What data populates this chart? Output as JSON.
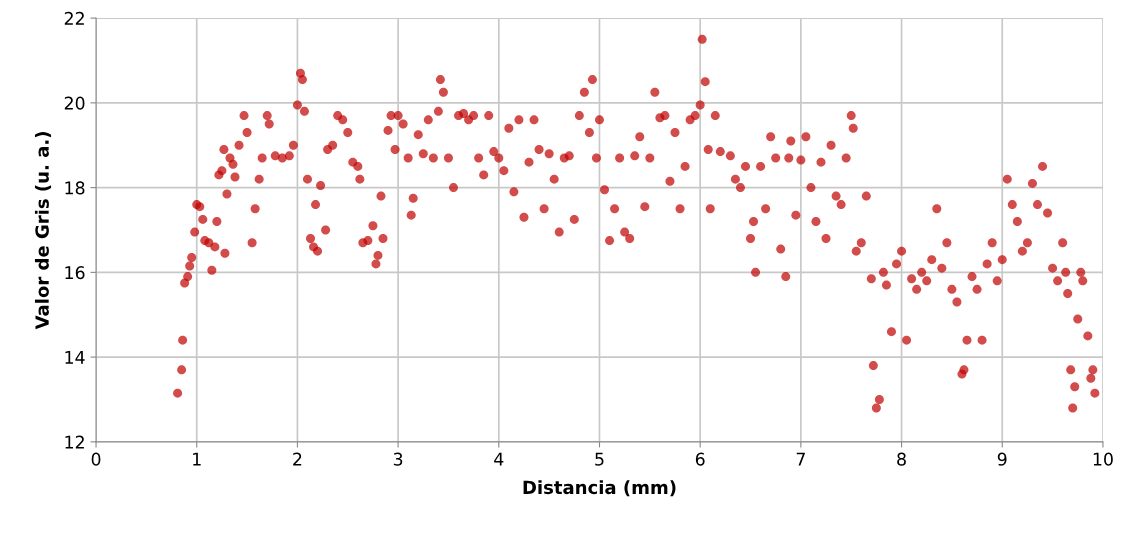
{
  "chart_data": {
    "type": "scatter",
    "xlabel": "Distancia (mm)",
    "ylabel": "Valor de Gris (u. a.)",
    "xlim": [
      0,
      10
    ],
    "ylim": [
      12,
      22
    ],
    "xticks": [
      0,
      1,
      2,
      3,
      4,
      5,
      6,
      7,
      8,
      9,
      10
    ],
    "yticks": [
      12,
      14,
      16,
      18,
      20,
      22
    ],
    "grid": true,
    "marker": "circle",
    "series": [
      {
        "color": "#c00000",
        "x": [
          0.81,
          0.85,
          0.86,
          0.88,
          0.91,
          0.93,
          0.95,
          0.98,
          1.0,
          1.03,
          1.06,
          1.08,
          1.12,
          1.15,
          1.18,
          1.2,
          1.22,
          1.25,
          1.27,
          1.28,
          1.3,
          1.33,
          1.36,
          1.38,
          1.42,
          1.47,
          1.5,
          1.55,
          1.58,
          1.62,
          1.65,
          1.7,
          1.72,
          1.78,
          1.85,
          1.92,
          1.96,
          2.0,
          2.03,
          2.05,
          2.07,
          2.1,
          2.13,
          2.16,
          2.18,
          2.2,
          2.23,
          2.28,
          2.3,
          2.35,
          2.4,
          2.45,
          2.5,
          2.55,
          2.6,
          2.62,
          2.65,
          2.7,
          2.75,
          2.78,
          2.8,
          2.83,
          2.85,
          2.9,
          2.93,
          2.97,
          3.0,
          3.05,
          3.1,
          3.13,
          3.15,
          3.2,
          3.25,
          3.3,
          3.35,
          3.4,
          3.42,
          3.45,
          3.5,
          3.55,
          3.6,
          3.65,
          3.7,
          3.75,
          3.8,
          3.85,
          3.9,
          3.95,
          4.0,
          4.05,
          4.1,
          4.15,
          4.2,
          4.25,
          4.3,
          4.35,
          4.4,
          4.45,
          4.5,
          4.55,
          4.6,
          4.65,
          4.7,
          4.75,
          4.8,
          4.85,
          4.9,
          4.93,
          4.97,
          5.0,
          5.05,
          5.1,
          5.15,
          5.2,
          5.25,
          5.3,
          5.35,
          5.4,
          5.45,
          5.5,
          5.55,
          5.6,
          5.65,
          5.7,
          5.75,
          5.8,
          5.85,
          5.9,
          5.95,
          6.0,
          6.02,
          6.05,
          6.08,
          6.1,
          6.15,
          6.2,
          6.3,
          6.35,
          6.4,
          6.45,
          6.5,
          6.53,
          6.55,
          6.6,
          6.65,
          6.7,
          6.75,
          6.8,
          6.85,
          6.88,
          6.9,
          6.95,
          7.0,
          7.05,
          7.1,
          7.15,
          7.2,
          7.25,
          7.3,
          7.35,
          7.4,
          7.45,
          7.5,
          7.52,
          7.55,
          7.6,
          7.65,
          7.7,
          7.72,
          7.75,
          7.78,
          7.82,
          7.85,
          7.9,
          7.95,
          8.0,
          8.05,
          8.1,
          8.15,
          8.2,
          8.25,
          8.3,
          8.35,
          8.4,
          8.45,
          8.5,
          8.55,
          8.6,
          8.62,
          8.65,
          8.7,
          8.75,
          8.8,
          8.85,
          8.9,
          8.95,
          9.0,
          9.05,
          9.1,
          9.15,
          9.2,
          9.25,
          9.3,
          9.35,
          9.4,
          9.45,
          9.5,
          9.55,
          9.6,
          9.63,
          9.65,
          9.68,
          9.7,
          9.72,
          9.75,
          9.78,
          9.8,
          9.85,
          9.88,
          9.9,
          9.92
        ],
        "values": [
          13.15,
          13.7,
          14.4,
          15.75,
          15.9,
          16.15,
          16.35,
          16.95,
          17.6,
          17.55,
          17.25,
          16.75,
          16.7,
          16.05,
          16.6,
          17.2,
          18.3,
          18.4,
          18.9,
          16.45,
          17.85,
          18.7,
          18.55,
          18.25,
          19.0,
          19.7,
          19.3,
          16.7,
          17.5,
          18.2,
          18.7,
          19.7,
          19.5,
          18.75,
          18.7,
          18.75,
          19.0,
          19.95,
          20.7,
          20.55,
          19.8,
          18.2,
          16.8,
          16.6,
          17.6,
          16.5,
          18.05,
          17.0,
          18.9,
          19.0,
          19.7,
          19.6,
          19.3,
          18.6,
          18.5,
          18.2,
          16.7,
          16.75,
          17.1,
          16.2,
          16.4,
          17.8,
          16.8,
          19.35,
          19.7,
          18.9,
          19.7,
          19.5,
          18.7,
          17.35,
          17.75,
          19.25,
          18.8,
          19.6,
          18.7,
          19.8,
          20.55,
          20.25,
          18.7,
          18.0,
          19.7,
          19.75,
          19.6,
          19.7,
          18.7,
          18.3,
          19.7,
          18.85,
          18.7,
          18.4,
          19.4,
          17.9,
          19.6,
          17.3,
          18.6,
          19.6,
          18.9,
          17.5,
          18.8,
          18.2,
          16.95,
          18.7,
          18.75,
          17.25,
          19.7,
          20.25,
          19.3,
          20.55,
          18.7,
          19.6,
          17.95,
          16.75,
          17.5,
          18.7,
          16.95,
          16.8,
          18.75,
          19.2,
          17.55,
          18.7,
          20.25,
          19.65,
          19.7,
          18.15,
          19.3,
          17.5,
          18.5,
          19.6,
          19.7,
          19.95,
          21.5,
          20.5,
          18.9,
          17.5,
          19.7,
          18.85,
          18.75,
          18.2,
          18.0,
          18.5,
          16.8,
          17.2,
          16.0,
          18.5,
          17.5,
          19.2,
          18.7,
          16.55,
          15.9,
          18.7,
          19.1,
          17.35,
          18.65,
          19.2,
          18.0,
          17.2,
          18.6,
          16.8,
          19.0,
          17.8,
          17.6,
          18.7,
          19.7,
          19.4,
          16.5,
          16.7,
          17.8,
          15.85,
          13.8,
          12.8,
          13.0,
          16.0,
          15.7,
          14.6,
          16.2,
          16.5,
          14.4,
          15.85,
          15.6,
          16.0,
          15.8,
          16.3,
          17.5,
          16.1,
          16.7,
          15.6,
          15.3,
          13.6,
          13.7,
          14.4,
          15.9,
          15.6,
          14.4,
          16.2,
          16.7,
          15.8,
          16.3,
          18.2,
          17.6,
          17.2,
          16.5,
          16.7,
          18.1,
          17.6,
          18.5,
          17.4,
          16.1,
          15.8,
          16.7,
          16.0,
          15.5,
          13.7,
          12.8,
          13.3,
          14.9,
          16.0,
          15.8,
          14.5,
          13.5,
          13.7,
          13.15
        ]
      }
    ]
  }
}
